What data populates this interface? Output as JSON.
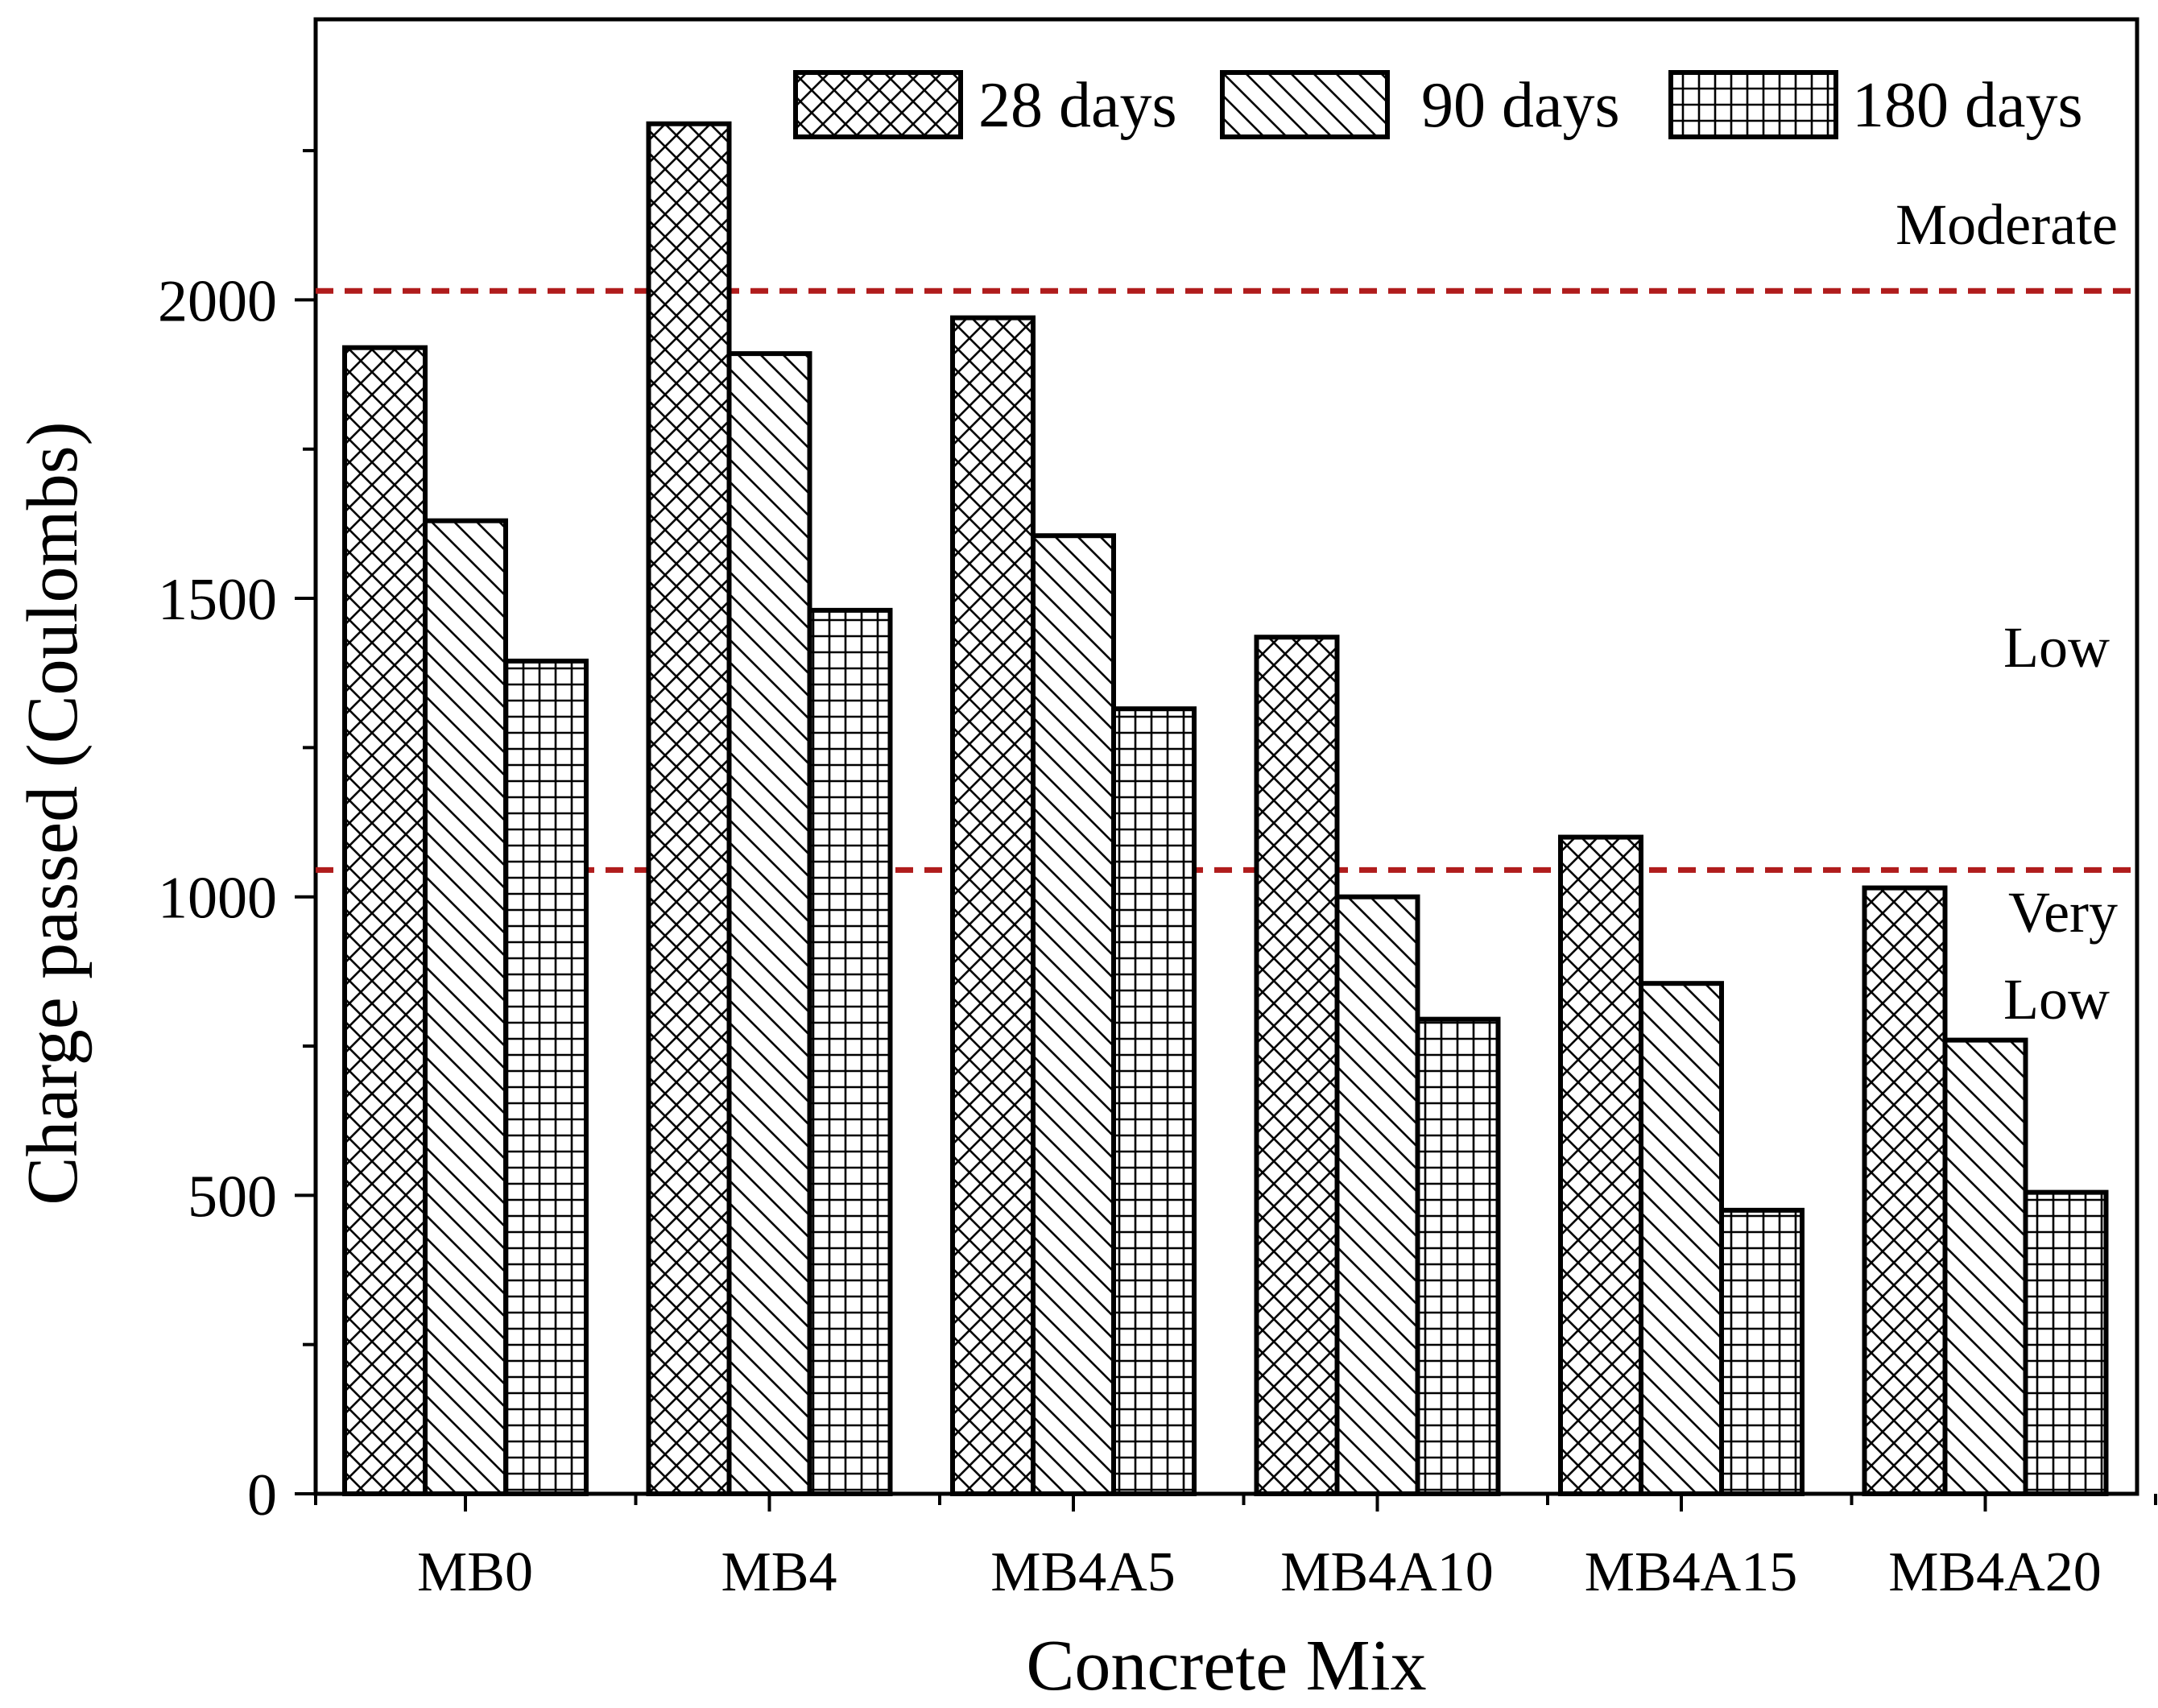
{
  "chart_data": {
    "type": "bar",
    "title": "",
    "xlabel": "Concrete Mix",
    "ylabel": "Charge passed (Coulombs)",
    "ylim": [
      0,
      2500
    ],
    "yticks": [
      0,
      500,
      1000,
      1500,
      2000
    ],
    "grid": false,
    "legend_position": "top-right",
    "categories": [
      "MB0",
      "MB4",
      "MB4A5",
      "MB4A10",
      "MB4A15",
      "MB4A20"
    ],
    "series": [
      {
        "name": "28 days",
        "pattern": "crosshatch",
        "values": [
          1920,
          2295,
          1970,
          1435,
          1100,
          1015
        ]
      },
      {
        "name": "90 days",
        "pattern": "diagonal",
        "values": [
          1630,
          1910,
          1605,
          1000,
          855,
          760
        ]
      },
      {
        "name": "180 days",
        "pattern": "grid",
        "values": [
          1395,
          1480,
          1315,
          795,
          475,
          505
        ]
      }
    ],
    "thresholds": [
      {
        "value": 2015,
        "color": "#b01c1c",
        "style": "dashed"
      },
      {
        "value": 1045,
        "color": "#b01c1c",
        "style": "dashed"
      }
    ],
    "zone_labels": {
      "moderate": "Moderate",
      "low": "Low",
      "very_low_line1": "Very",
      "very_low_line2": "Low"
    }
  }
}
